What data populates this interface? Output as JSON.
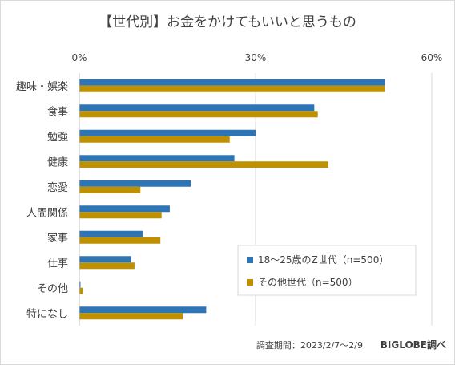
{
  "chart_data": {
    "type": "bar",
    "orientation": "horizontal",
    "title": "【世代別】お金をかけてもいいと思うもの",
    "categories": [
      "趣味・娯楽",
      "食事",
      "勉強",
      "健康",
      "恋愛",
      "人間関係",
      "家事",
      "仕事",
      "その他",
      "特になし"
    ],
    "series": [
      {
        "name": "18〜25歳のZ世代（n=500）",
        "color": "#2e75b6",
        "values": [
          52.0,
          40.0,
          30.0,
          26.4,
          19.0,
          15.4,
          10.8,
          8.8,
          0.2,
          21.6
        ]
      },
      {
        "name": "その他世代（n=500）",
        "color": "#bf9000",
        "values": [
          52.0,
          40.6,
          25.6,
          42.4,
          10.4,
          14.0,
          13.8,
          9.4,
          0.6,
          17.6
        ]
      }
    ],
    "xlim": [
      0,
      60
    ],
    "xticks": [
      0,
      30,
      60
    ],
    "tick_format": "{v}%",
    "grid": true,
    "legend_position": "bottom-right"
  },
  "footer": {
    "survey_period": "調査期間：2023/2/7〜2/9",
    "source": "BIGLOBE調べ"
  }
}
